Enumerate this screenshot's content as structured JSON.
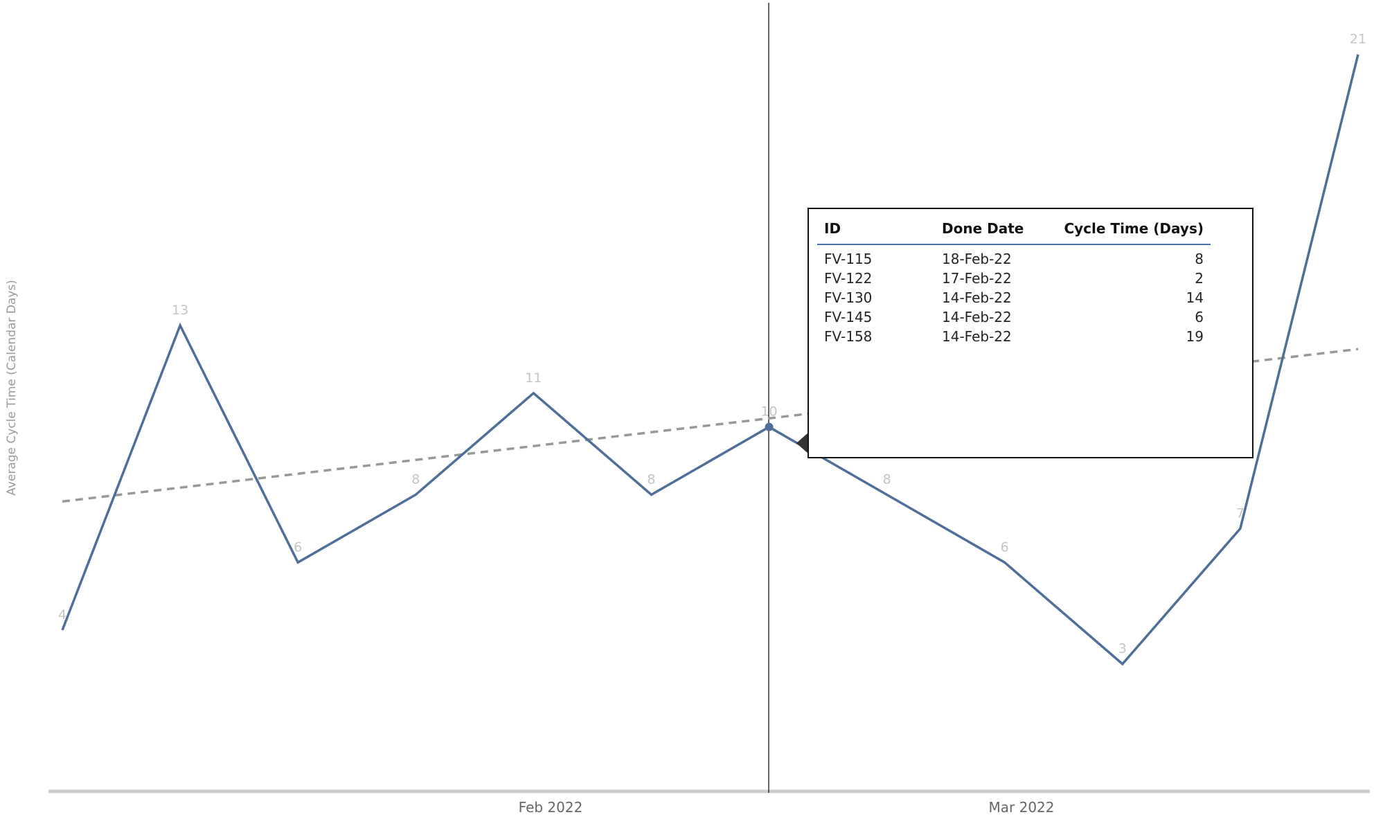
{
  "chart_data": {
    "type": "line",
    "ylabel": "Average Cycle Time (Calendar Days)",
    "xlabel": "",
    "x_ticks": [
      "Feb 2022",
      "Mar 2022"
    ],
    "series": [
      {
        "values": [
          4,
          13,
          6,
          8,
          11,
          8,
          10,
          8,
          6,
          3,
          7,
          21
        ]
      }
    ],
    "data_labels": [
      "4",
      "13",
      "6",
      "8",
      "11",
      "8",
      "10",
      "8",
      "6",
      "3",
      "7",
      "21"
    ],
    "trend": {
      "style": "dashed",
      "start": 7.8,
      "end": 12.3
    },
    "ylim": [
      -0.7,
      22.2
    ],
    "highlighted_index": 6,
    "colors": {
      "line": "#4f6f9a",
      "trend": "#999999",
      "axis": "#cccccc",
      "crosshair": "#333333"
    }
  },
  "tooltip": {
    "columns": [
      "ID",
      "Done Date",
      "Cycle Time (Days)"
    ],
    "rows": [
      [
        "FV-115",
        "18-Feb-22",
        "8"
      ],
      [
        "FV-122",
        "17-Feb-22",
        "2"
      ],
      [
        "FV-130",
        "14-Feb-22",
        "14"
      ],
      [
        "FV-145",
        "14-Feb-22",
        "6"
      ],
      [
        "FV-158",
        "14-Feb-22",
        "19"
      ]
    ]
  }
}
